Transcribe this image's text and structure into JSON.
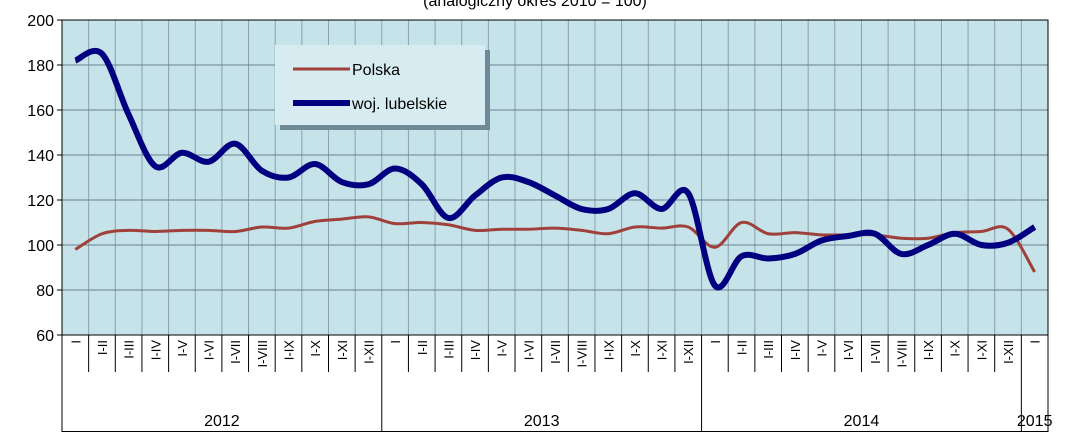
{
  "chart_data": {
    "type": "line",
    "subtitle": "(analogiczny okres 2010 = 100)",
    "categories": [
      "I",
      "I-II",
      "I-III",
      "I-IV",
      "I-V",
      "I-VI",
      "I-VII",
      "I-VIII",
      "I-IX",
      "I-X",
      "I-XI",
      "I-XII",
      "I",
      "I-II",
      "I-III",
      "I-IV",
      "I-V",
      "I-VI",
      "I-VII",
      "I-VIII",
      "I-IX",
      "I-X",
      "I-XI",
      "I-XII",
      "I",
      "I-II",
      "I-III",
      "I-IV",
      "I-V",
      "I-VI",
      "I-VII",
      "I-VIII",
      "I-IX",
      "I-X",
      "I-XI",
      "I-XII",
      "I"
    ],
    "years": [
      "2012",
      "2013",
      "2014",
      "2015"
    ],
    "series": [
      {
        "name": "Polska",
        "color": "#a0403a",
        "values": [
          98,
          105,
          106.5,
          106,
          106.5,
          106.5,
          106,
          108,
          107.5,
          110.5,
          111.5,
          112.5,
          109.5,
          110,
          109,
          106.5,
          107,
          107,
          107.5,
          106.5,
          105,
          108,
          107.5,
          108,
          99,
          110,
          105,
          105.5,
          104.5,
          104.5,
          104.5,
          103,
          103,
          105.5,
          106,
          107,
          88
        ]
      },
      {
        "name": "woj. lubelskie",
        "color": "#000080",
        "values": [
          182,
          185,
          158,
          135,
          141,
          137,
          145,
          133,
          130,
          136,
          128,
          127,
          134,
          127,
          112,
          122,
          130,
          128,
          122,
          116,
          116,
          123,
          116,
          123,
          82,
          95,
          94,
          96,
          102,
          104,
          105,
          96,
          100,
          105,
          100,
          101,
          108
        ]
      }
    ],
    "ylim": [
      60,
      200
    ],
    "yticks": [
      60,
      80,
      100,
      120,
      140,
      160,
      180,
      200
    ],
    "grid": true,
    "legend": "top-left"
  }
}
